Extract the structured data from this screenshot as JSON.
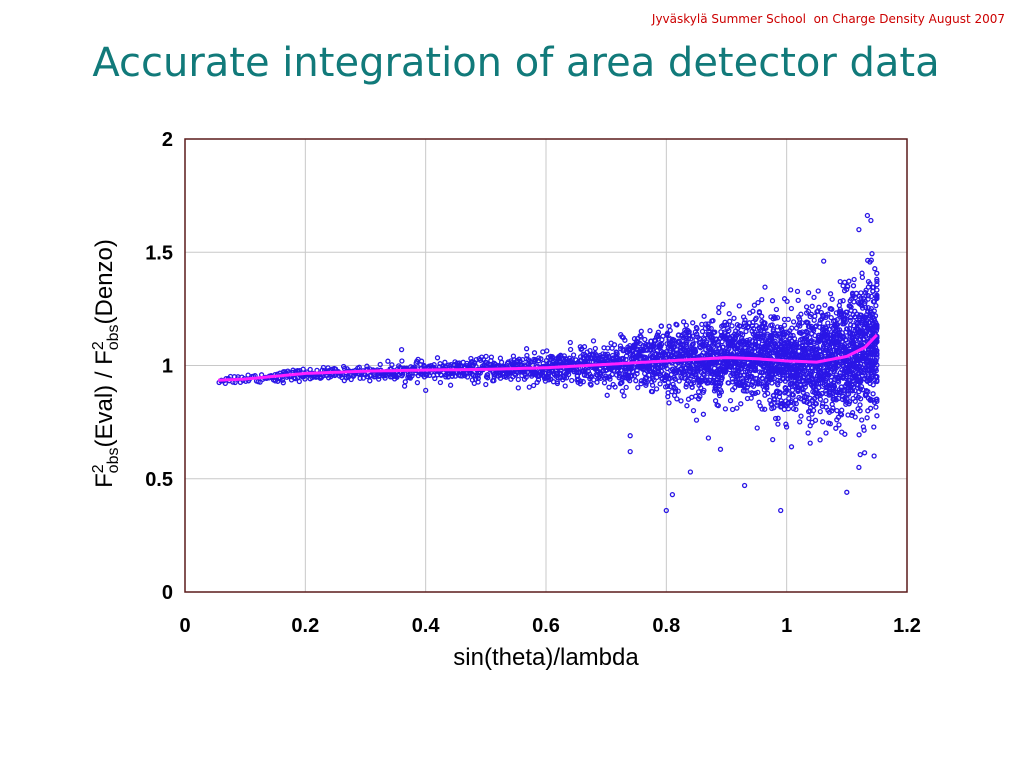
{
  "slide": {
    "header_note": "Jyväskylä Summer School  on Charge Density August 2007",
    "title": "Accurate integration of area detector data"
  },
  "colors": {
    "points": "#2a16e6",
    "fit": "#ff20ff",
    "frame": "#5a1a1a",
    "grid": "#c8c8c8",
    "title": "#117a7a",
    "header": "#cc0000"
  },
  "chart_data": {
    "type": "scatter",
    "title": "",
    "xlabel": "sin(theta)/lambda",
    "ylabel": {
      "parts": [
        "F",
        "2",
        "obs",
        "(Eval) / F",
        "2",
        "obs",
        "(Denzo)"
      ]
    },
    "xlim": [
      0,
      1.2
    ],
    "ylim": [
      0,
      2
    ],
    "xticks": [
      0,
      0.2,
      0.4,
      0.6,
      0.8,
      1,
      1.2
    ],
    "xtick_labels": [
      "0",
      "0.2",
      "0.4",
      "0.6",
      "0.8",
      "1",
      "1.2"
    ],
    "yticks": [
      0,
      0.5,
      1,
      1.5,
      2
    ],
    "ytick_labels": [
      "0",
      "0.5",
      "1",
      "1.5",
      "2"
    ],
    "grid": true,
    "legend": false,
    "series": [
      {
        "kind": "scatter",
        "x_range": [
          0.055,
          1.15
        ],
        "center": [
          [
            0.055,
            0.935
          ],
          [
            0.2,
            0.96
          ],
          [
            0.4,
            0.975
          ],
          [
            0.6,
            0.985
          ],
          [
            0.7,
            1.005
          ],
          [
            0.8,
            1.02
          ],
          [
            0.9,
            1.03
          ],
          [
            1.0,
            1.02
          ],
          [
            1.05,
            1.01
          ],
          [
            1.1,
            1.04
          ],
          [
            1.15,
            1.1
          ]
        ],
        "spread": [
          [
            0.055,
            0.01
          ],
          [
            0.3,
            0.015
          ],
          [
            0.5,
            0.025
          ],
          [
            0.65,
            0.035
          ],
          [
            0.75,
            0.06
          ],
          [
            0.85,
            0.08
          ],
          [
            0.95,
            0.1
          ],
          [
            1.05,
            0.12
          ],
          [
            1.15,
            0.16
          ]
        ],
        "density": [
          [
            0.055,
            1
          ],
          [
            0.4,
            3
          ],
          [
            0.7,
            7
          ],
          [
            0.9,
            14
          ],
          [
            1.1,
            22
          ],
          [
            1.15,
            26
          ]
        ],
        "outliers": [
          [
            0.74,
            0.69
          ],
          [
            0.74,
            0.62
          ],
          [
            0.8,
            0.36
          ],
          [
            0.81,
            0.43
          ],
          [
            0.84,
            0.53
          ],
          [
            0.87,
            0.68
          ],
          [
            0.89,
            0.63
          ],
          [
            0.93,
            0.47
          ],
          [
            0.99,
            0.36
          ],
          [
            1.1,
            0.44
          ],
          [
            1.12,
            1.6
          ],
          [
            1.14,
            1.64
          ],
          [
            1.12,
            0.55
          ],
          [
            0.36,
            1.07
          ],
          [
            0.4,
            0.89
          ]
        ]
      },
      {
        "kind": "line",
        "points": [
          [
            0.055,
            0.935
          ],
          [
            0.1,
            0.94
          ],
          [
            0.2,
            0.965
          ],
          [
            0.3,
            0.975
          ],
          [
            0.4,
            0.98
          ],
          [
            0.5,
            0.983
          ],
          [
            0.6,
            0.99
          ],
          [
            0.7,
            1.005
          ],
          [
            0.8,
            1.02
          ],
          [
            0.9,
            1.035
          ],
          [
            0.95,
            1.03
          ],
          [
            1.0,
            1.02
          ],
          [
            1.05,
            1.015
          ],
          [
            1.1,
            1.04
          ],
          [
            1.13,
            1.08
          ],
          [
            1.15,
            1.135
          ]
        ]
      }
    ]
  }
}
